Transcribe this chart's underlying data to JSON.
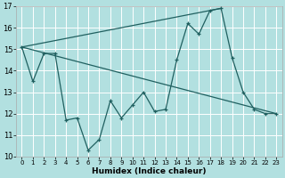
{
  "xlabel": "Humidex (Indice chaleur)",
  "background_color": "#b2e0e0",
  "grid_color": "#ffffff",
  "line_color": "#206060",
  "xlim": [
    -0.5,
    23.5
  ],
  "ylim": [
    10,
    17
  ],
  "xticks": [
    0,
    1,
    2,
    3,
    4,
    5,
    6,
    7,
    8,
    9,
    10,
    11,
    12,
    13,
    14,
    15,
    16,
    17,
    18,
    19,
    20,
    21,
    22,
    23
  ],
  "yticks": [
    10,
    11,
    12,
    13,
    14,
    15,
    16,
    17
  ],
  "zigzag_x": [
    0,
    1,
    2,
    3,
    4,
    5,
    6,
    7,
    8,
    9,
    10,
    11,
    12,
    13,
    14,
    15,
    16,
    17,
    18,
    19,
    20,
    21,
    22,
    23
  ],
  "zigzag_y": [
    15.1,
    13.5,
    14.8,
    14.8,
    11.7,
    11.8,
    10.3,
    10.8,
    12.6,
    11.8,
    12.4,
    13.0,
    12.1,
    12.2,
    14.5,
    16.2,
    15.7,
    16.8,
    16.9,
    14.6,
    13.0,
    12.2,
    12.0,
    12.0
  ],
  "desc_line_x": [
    0,
    23
  ],
  "desc_line_y": [
    15.1,
    12.0
  ],
  "asc_line_x": [
    0,
    18
  ],
  "asc_line_y": [
    15.1,
    16.9
  ]
}
